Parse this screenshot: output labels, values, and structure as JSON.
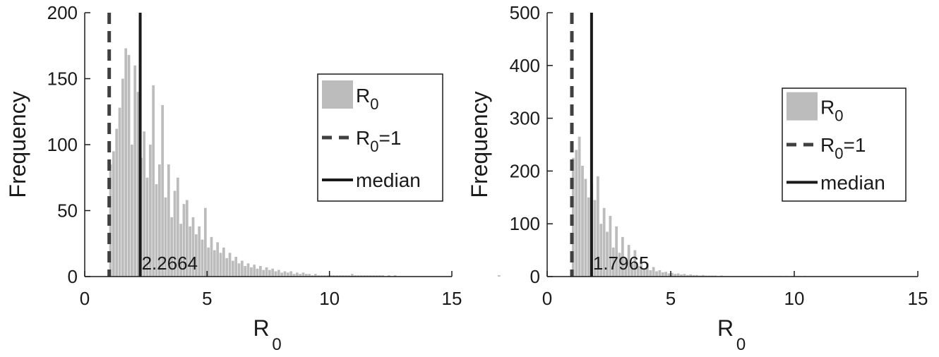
{
  "colors": {
    "bar": "#bcbcbc",
    "threshold_line": "#404040",
    "median_line": "#1a1a1a",
    "axis": "#1a1a1a",
    "background": "#ffffff"
  },
  "chart_data": [
    {
      "type": "bar",
      "xlabel": "R",
      "xlabel_sub": "0",
      "ylabel": "Frequency",
      "xlim": [
        0,
        15
      ],
      "ylim": [
        0,
        200
      ],
      "xticks": [
        "0",
        "5",
        "10",
        "15"
      ],
      "xtick_values": [
        0,
        5,
        10,
        15
      ],
      "yticks": [
        "0",
        "50",
        "100",
        "150",
        "200"
      ],
      "ytick_values": [
        0,
        50,
        100,
        150,
        200
      ],
      "bin_start": 1.0,
      "bin_width": 0.125,
      "values": [
        85,
        95,
        112,
        128,
        150,
        173,
        168,
        100,
        160,
        140,
        90,
        110,
        75,
        100,
        145,
        70,
        85,
        130,
        60,
        85,
        45,
        65,
        75,
        40,
        55,
        58,
        38,
        45,
        32,
        38,
        28,
        52,
        22,
        30,
        20,
        26,
        18,
        22,
        14,
        18,
        12,
        15,
        10,
        12,
        8,
        10,
        7,
        9,
        6,
        8,
        5,
        7,
        5,
        6,
        4,
        5,
        3,
        4,
        3,
        4,
        2,
        3,
        2,
        3,
        2,
        2,
        1,
        2,
        1,
        1,
        1,
        1,
        1,
        1,
        1,
        1,
        1,
        1,
        1,
        2,
        1,
        1,
        1,
        1,
        1,
        1,
        1,
        1,
        1,
        1,
        0,
        1,
        0,
        1,
        0,
        0,
        0,
        0,
        0,
        0,
        0,
        0,
        0,
        0,
        0,
        0,
        0,
        0,
        0,
        0,
        0,
        0,
        0,
        0,
        0,
        0,
        0,
        0,
        0,
        0,
        0,
        0,
        0,
        0,
        0,
        0,
        0,
        1
      ],
      "threshold": 1,
      "median": 2.2664,
      "median_label": "2.2664",
      "legend": {
        "placement": "right",
        "items": [
          {
            "label": "R",
            "sub": "0",
            "suffix": "",
            "kind": "bar"
          },
          {
            "label": "R",
            "sub": "0",
            "suffix": "=1",
            "kind": "dashed"
          },
          {
            "label": "median",
            "sub": "",
            "suffix": "",
            "kind": "solid"
          }
        ]
      }
    },
    {
      "type": "bar",
      "xlabel": "R",
      "xlabel_sub": "0",
      "ylabel": "Frequency",
      "xlim": [
        0,
        15
      ],
      "ylim": [
        0,
        500
      ],
      "xticks": [
        "0",
        "5",
        "10",
        "15"
      ],
      "xtick_values": [
        0,
        5,
        10,
        15
      ],
      "yticks": [
        "0",
        "100",
        "200",
        "300",
        "400",
        "500"
      ],
      "ytick_values": [
        0,
        100,
        200,
        300,
        400,
        500
      ],
      "bin_start": 1.0,
      "bin_width": 0.125,
      "values": [
        225,
        240,
        265,
        210,
        185,
        150,
        175,
        145,
        190,
        100,
        130,
        85,
        115,
        55,
        95,
        45,
        75,
        35,
        60,
        25,
        50,
        20,
        35,
        15,
        25,
        12,
        18,
        10,
        12,
        8,
        9,
        6,
        7,
        5,
        6,
        4,
        5,
        3,
        4,
        3,
        3,
        2,
        3,
        2,
        2,
        2,
        2,
        1,
        2,
        1,
        1,
        1,
        1,
        1,
        1,
        1,
        1,
        1,
        1,
        1,
        1,
        1,
        1,
        1,
        1,
        1,
        1,
        1,
        0,
        1,
        0,
        1,
        0,
        1,
        0,
        1,
        0,
        0,
        0,
        0,
        0,
        0,
        0,
        0,
        0,
        0,
        0,
        0,
        0,
        0,
        0,
        0,
        0,
        0,
        0,
        0,
        0,
        0,
        0,
        0,
        0,
        0,
        0,
        0,
        0,
        0,
        0,
        0,
        0,
        0,
        0,
        0,
        0,
        0,
        0,
        0,
        0,
        0,
        0,
        0,
        0,
        0,
        0,
        0,
        0,
        0,
        0,
        0
      ],
      "threshold": 1,
      "median": 1.7965,
      "median_label": "1.7965",
      "legend": {
        "placement": "right",
        "items": [
          {
            "label": "R",
            "sub": "0",
            "suffix": "",
            "kind": "bar"
          },
          {
            "label": "R",
            "sub": "0",
            "suffix": "=1",
            "kind": "dashed"
          },
          {
            "label": "median",
            "sub": "",
            "suffix": "",
            "kind": "solid"
          }
        ]
      }
    }
  ]
}
